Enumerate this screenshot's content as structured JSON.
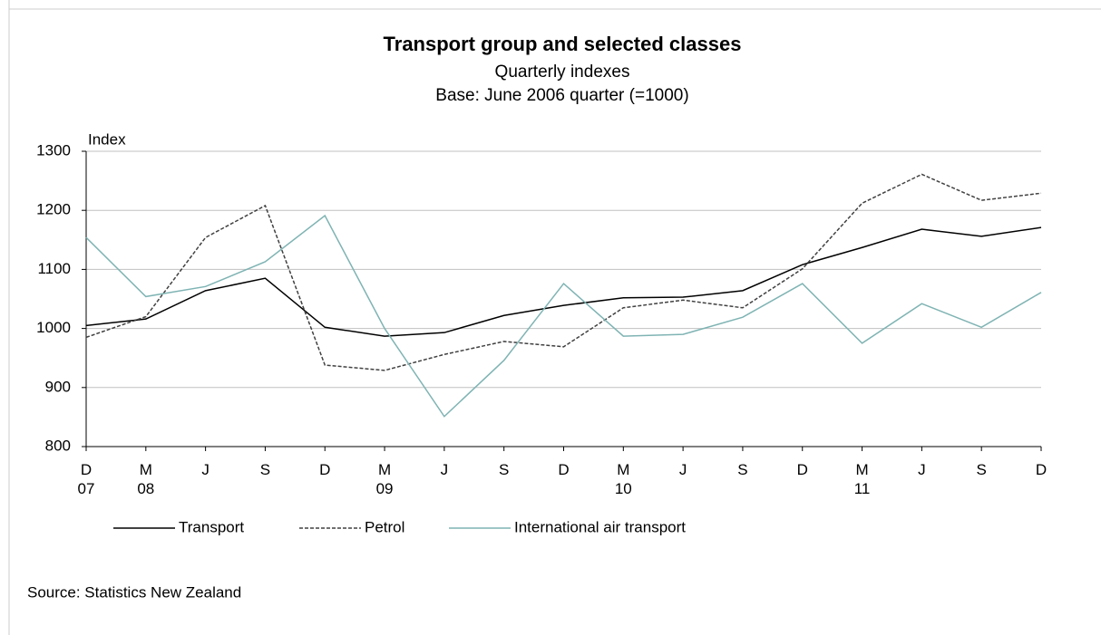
{
  "chart_data": {
    "type": "line",
    "title": "Transport group and selected classes",
    "subtitle": "Quarterly indexes",
    "subtitle2": "Base: June 2006 quarter (=1000)",
    "y_label": "Index",
    "source": "Source: Statistics New Zealand",
    "categories": [
      "D\n07",
      "M\n08",
      "J",
      "S",
      "D",
      "M\n09",
      "J",
      "S",
      "D",
      "M\n10",
      "J",
      "S",
      "D",
      "M\n11",
      "J",
      "S",
      "D"
    ],
    "series": [
      {
        "name": "Transport",
        "color": "#000000",
        "style": "solid",
        "values": [
          1005,
          1016,
          1064,
          1085,
          1002,
          987,
          993,
          1022,
          1039,
          1052,
          1053,
          1064,
          1108,
          1137,
          1168,
          1156,
          1171
        ]
      },
      {
        "name": "Petrol",
        "color": "#404040",
        "style": "dashed",
        "values": [
          985,
          1020,
          1154,
          1208,
          938,
          929,
          956,
          978,
          969,
          1035,
          1048,
          1035,
          1101,
          1212,
          1261,
          1217,
          1229
        ]
      },
      {
        "name": "International air transport",
        "color": "#7fb3b3",
        "style": "solid",
        "values": [
          1154,
          1054,
          1071,
          1113,
          1191,
          1000,
          851,
          946,
          1076,
          987,
          990,
          1019,
          1076,
          975,
          1042,
          1002,
          1061
        ]
      }
    ],
    "ylim": [
      800,
      1300
    ],
    "yticks": [
      800,
      900,
      1000,
      1100,
      1200,
      1300
    ],
    "grid": true
  }
}
